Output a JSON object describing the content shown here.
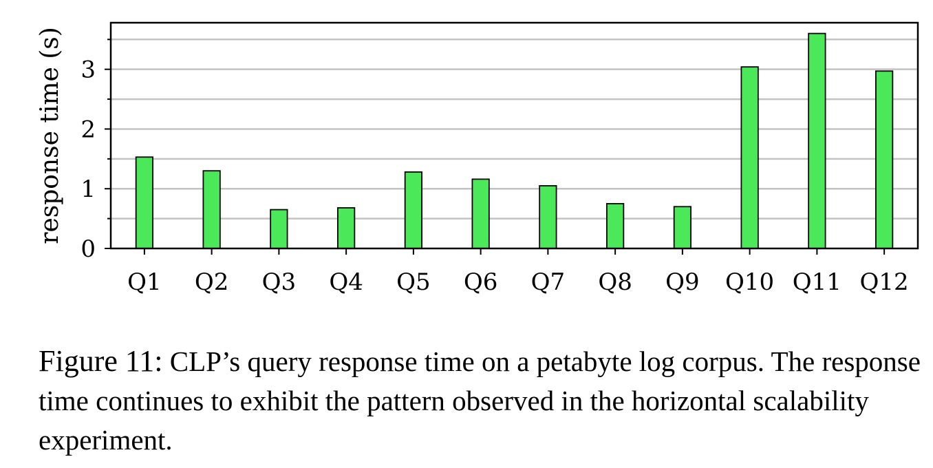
{
  "chart_data": {
    "type": "bar",
    "categories": [
      "Q1",
      "Q2",
      "Q3",
      "Q4",
      "Q5",
      "Q6",
      "Q7",
      "Q8",
      "Q9",
      "Q10",
      "Q11",
      "Q12"
    ],
    "values": [
      1.53,
      1.3,
      0.65,
      0.68,
      1.28,
      1.16,
      1.05,
      0.75,
      0.7,
      3.04,
      3.6,
      2.97
    ],
    "ylabel": "response time (s)",
    "xlabel": "",
    "ylim": [
      0,
      3.78
    ],
    "yticks": [
      0,
      1,
      2,
      3
    ],
    "grid": true,
    "bar_color": "#4be85a"
  },
  "caption": {
    "label": "Figure 11:",
    "text": "CLP’s query response time on a petabyte log corpus. The response time continues to exhibit the pattern observed in the horizontal scalability experiment."
  }
}
